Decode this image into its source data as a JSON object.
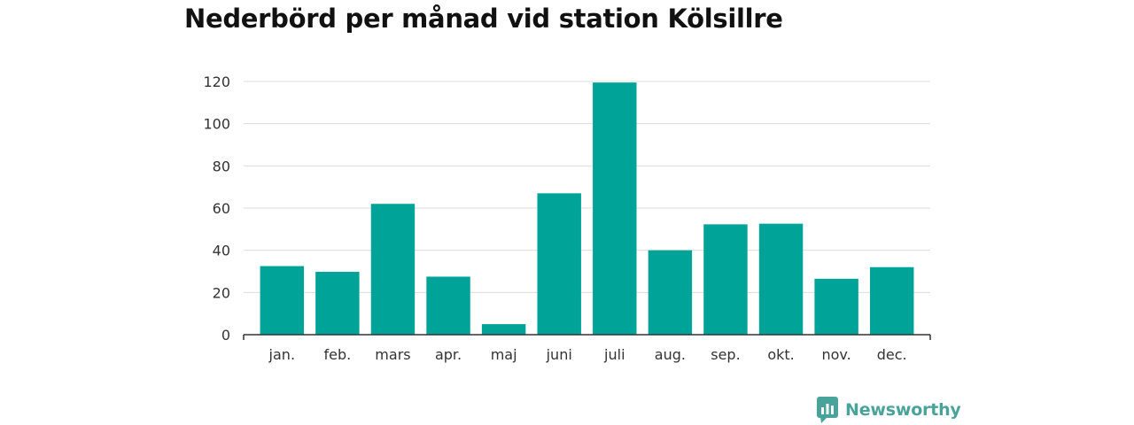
{
  "chart_data": {
    "type": "bar",
    "title": "Nederbörd per månad vid station Kölsillre",
    "categories": [
      "jan.",
      "feb.",
      "mars",
      "apr.",
      "maj",
      "juni",
      "juli",
      "aug.",
      "sep.",
      "okt.",
      "nov.",
      "dec."
    ],
    "values": [
      32.5,
      29.8,
      62.0,
      27.5,
      5.0,
      67.0,
      119.5,
      40.0,
      52.3,
      52.6,
      26.5,
      32.0
    ],
    "ylim": [
      0,
      120
    ],
    "yticks": [
      "0",
      "20",
      "40",
      "60",
      "80",
      "100",
      "120"
    ],
    "xlabel": "",
    "ylabel": "",
    "grid": true,
    "bar_color": "#00a398",
    "grid_color": "#dcdcdc"
  },
  "brand": {
    "name": "Newsworthy",
    "icon": "newsworthy-logo-icon",
    "color": "#4aa39a"
  }
}
